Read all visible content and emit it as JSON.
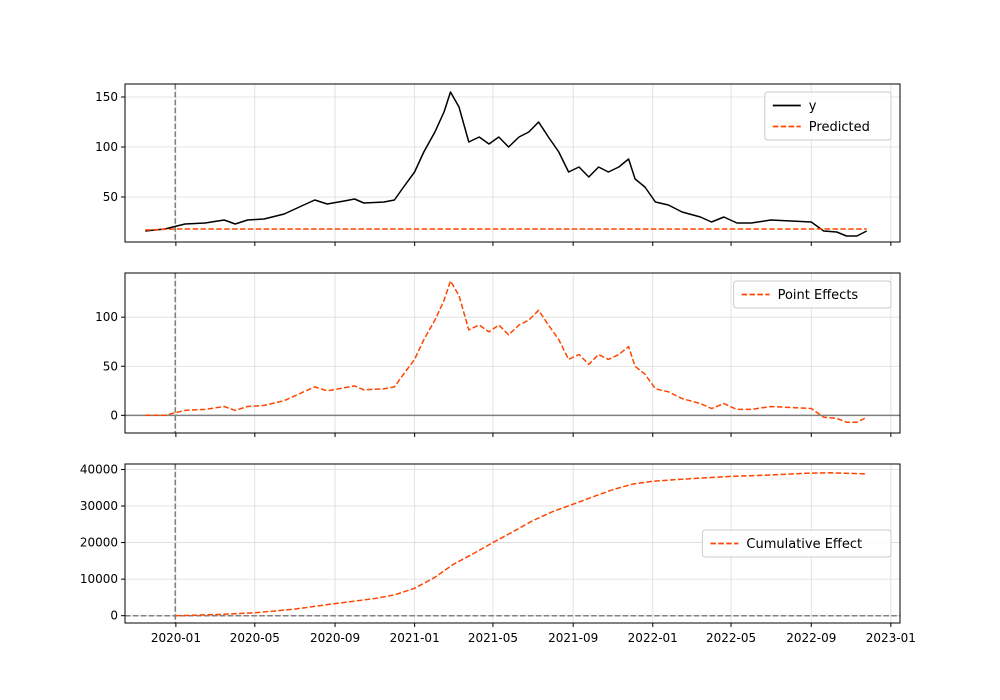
{
  "colors": {
    "observed": "#000000",
    "effect": "#ff4500",
    "reference": "#808080",
    "grid": "#dcdcdc"
  },
  "chart_data": [
    {
      "type": "line",
      "panel": "top",
      "x_axis": "date",
      "xlim": [
        "2019-10-15",
        "2023-01-15"
      ],
      "ylim": [
        5,
        163
      ],
      "yticks": [
        50,
        100,
        150
      ],
      "xticks": [
        "2020-01",
        "2020-05",
        "2020-09",
        "2021-01",
        "2021-05",
        "2021-09",
        "2022-01",
        "2022-05",
        "2022-09",
        "2023-01"
      ],
      "show_xtick_labels": false,
      "grid": true,
      "legend_position": "top-right",
      "intervention_date": "2019-12-31",
      "series": [
        {
          "name": "y",
          "style": "solid",
          "color": "#000000",
          "points": [
            [
              "2019-11-15",
              16
            ],
            [
              "2019-12-15",
              18
            ],
            [
              "2020-01-15",
              23
            ],
            [
              "2020-02-15",
              24
            ],
            [
              "2020-03-15",
              27
            ],
            [
              "2020-04-01",
              23
            ],
            [
              "2020-04-20",
              27
            ],
            [
              "2020-05-15",
              28
            ],
            [
              "2020-06-15",
              33
            ],
            [
              "2020-07-15",
              42
            ],
            [
              "2020-08-01",
              47
            ],
            [
              "2020-08-20",
              43
            ],
            [
              "2020-09-15",
              46
            ],
            [
              "2020-10-01",
              48
            ],
            [
              "2020-10-15",
              44
            ],
            [
              "2020-11-15",
              45
            ],
            [
              "2020-12-01",
              47
            ],
            [
              "2020-12-15",
              60
            ],
            [
              "2021-01-01",
              75
            ],
            [
              "2021-01-15",
              95
            ],
            [
              "2021-02-01",
              115
            ],
            [
              "2021-02-15",
              135
            ],
            [
              "2021-02-25",
              155
            ],
            [
              "2021-03-10",
              140
            ],
            [
              "2021-03-25",
              105
            ],
            [
              "2021-04-10",
              110
            ],
            [
              "2021-04-25",
              103
            ],
            [
              "2021-05-10",
              110
            ],
            [
              "2021-05-25",
              100
            ],
            [
              "2021-06-10",
              110
            ],
            [
              "2021-06-25",
              115
            ],
            [
              "2021-07-10",
              125
            ],
            [
              "2021-07-25",
              110
            ],
            [
              "2021-08-10",
              95
            ],
            [
              "2021-08-25",
              75
            ],
            [
              "2021-09-10",
              80
            ],
            [
              "2021-09-25",
              70
            ],
            [
              "2021-10-10",
              80
            ],
            [
              "2021-10-25",
              75
            ],
            [
              "2021-11-10",
              80
            ],
            [
              "2021-11-25",
              88
            ],
            [
              "2021-12-05",
              68
            ],
            [
              "2021-12-20",
              60
            ],
            [
              "2022-01-05",
              45
            ],
            [
              "2022-01-25",
              42
            ],
            [
              "2022-02-15",
              35
            ],
            [
              "2022-03-15",
              30
            ],
            [
              "2022-04-01",
              25
            ],
            [
              "2022-04-20",
              30
            ],
            [
              "2022-05-10",
              24
            ],
            [
              "2022-06-01",
              24
            ],
            [
              "2022-07-01",
              27
            ],
            [
              "2022-08-01",
              26
            ],
            [
              "2022-09-01",
              25
            ],
            [
              "2022-09-20",
              16
            ],
            [
              "2022-10-10",
              15
            ],
            [
              "2022-10-25",
              11
            ],
            [
              "2022-11-10",
              11
            ],
            [
              "2022-11-25",
              16
            ]
          ]
        },
        {
          "name": "Predicted",
          "style": "dashed",
          "color": "#ff4500",
          "points": [
            [
              "2019-11-15",
              17
            ],
            [
              "2019-12-31",
              18
            ],
            [
              "2022-11-25",
              18
            ]
          ]
        }
      ]
    },
    {
      "type": "line",
      "panel": "middle",
      "x_axis": "date",
      "xlim": [
        "2019-10-15",
        "2023-01-15"
      ],
      "ylim": [
        -18,
        145
      ],
      "yticks": [
        0,
        50,
        100
      ],
      "xticks": [
        "2020-01",
        "2020-05",
        "2020-09",
        "2021-01",
        "2021-05",
        "2021-09",
        "2022-01",
        "2022-05",
        "2022-09",
        "2023-01"
      ],
      "show_xtick_labels": false,
      "grid": true,
      "legend_position": "top-right",
      "intervention_date": "2019-12-31",
      "baseline": 0,
      "series": [
        {
          "name": "Point Effects",
          "style": "dashed",
          "color": "#ff4500",
          "points": [
            [
              "2019-11-15",
              0
            ],
            [
              "2019-12-15",
              0
            ],
            [
              "2020-01-15",
              5
            ],
            [
              "2020-02-15",
              6
            ],
            [
              "2020-03-15",
              9
            ],
            [
              "2020-04-01",
              5
            ],
            [
              "2020-04-20",
              9
            ],
            [
              "2020-05-15",
              10
            ],
            [
              "2020-06-15",
              15
            ],
            [
              "2020-07-15",
              24
            ],
            [
              "2020-08-01",
              29
            ],
            [
              "2020-08-20",
              25
            ],
            [
              "2020-09-15",
              28
            ],
            [
              "2020-10-01",
              30
            ],
            [
              "2020-10-15",
              26
            ],
            [
              "2020-11-15",
              27
            ],
            [
              "2020-12-01",
              29
            ],
            [
              "2020-12-15",
              42
            ],
            [
              "2021-01-01",
              57
            ],
            [
              "2021-01-15",
              77
            ],
            [
              "2021-02-01",
              97
            ],
            [
              "2021-02-15",
              117
            ],
            [
              "2021-02-25",
              137
            ],
            [
              "2021-03-10",
              122
            ],
            [
              "2021-03-25",
              87
            ],
            [
              "2021-04-10",
              92
            ],
            [
              "2021-04-25",
              85
            ],
            [
              "2021-05-10",
              92
            ],
            [
              "2021-05-25",
              82
            ],
            [
              "2021-06-10",
              92
            ],
            [
              "2021-06-25",
              97
            ],
            [
              "2021-07-10",
              107
            ],
            [
              "2021-07-25",
              92
            ],
            [
              "2021-08-10",
              77
            ],
            [
              "2021-08-25",
              57
            ],
            [
              "2021-09-10",
              62
            ],
            [
              "2021-09-25",
              52
            ],
            [
              "2021-10-10",
              62
            ],
            [
              "2021-10-25",
              57
            ],
            [
              "2021-11-10",
              62
            ],
            [
              "2021-11-25",
              70
            ],
            [
              "2021-12-05",
              50
            ],
            [
              "2021-12-20",
              42
            ],
            [
              "2022-01-05",
              27
            ],
            [
              "2022-01-25",
              24
            ],
            [
              "2022-02-15",
              17
            ],
            [
              "2022-03-15",
              12
            ],
            [
              "2022-04-01",
              7
            ],
            [
              "2022-04-20",
              12
            ],
            [
              "2022-05-10",
              6
            ],
            [
              "2022-06-01",
              6
            ],
            [
              "2022-07-01",
              9
            ],
            [
              "2022-08-01",
              8
            ],
            [
              "2022-09-01",
              7
            ],
            [
              "2022-09-20",
              -2
            ],
            [
              "2022-10-10",
              -3
            ],
            [
              "2022-10-25",
              -7
            ],
            [
              "2022-11-10",
              -7
            ],
            [
              "2022-11-25",
              -2
            ]
          ]
        }
      ]
    },
    {
      "type": "line",
      "panel": "bottom",
      "x_axis": "date",
      "xlim": [
        "2019-10-15",
        "2023-01-15"
      ],
      "ylim": [
        -2000,
        41500
      ],
      "yticks": [
        0,
        10000,
        20000,
        30000,
        40000
      ],
      "xticks": [
        "2020-01",
        "2020-05",
        "2020-09",
        "2021-01",
        "2021-05",
        "2021-09",
        "2022-01",
        "2022-05",
        "2022-09",
        "2023-01"
      ],
      "show_xtick_labels": true,
      "grid": true,
      "legend_position": "center-right",
      "intervention_date": "2019-12-31",
      "baseline": 0,
      "series": [
        {
          "name": "Cumulative Effect",
          "style": "dashed",
          "color": "#ff4500",
          "points": [
            [
              "2020-01-01",
              0
            ],
            [
              "2020-03-01",
              300
            ],
            [
              "2020-05-01",
              800
            ],
            [
              "2020-07-01",
              1800
            ],
            [
              "2020-09-01",
              3300
            ],
            [
              "2020-11-01",
              4700
            ],
            [
              "2020-12-01",
              5700
            ],
            [
              "2021-01-01",
              7500
            ],
            [
              "2021-02-01",
              10500
            ],
            [
              "2021-03-01",
              14000
            ],
            [
              "2021-04-01",
              17000
            ],
            [
              "2021-05-01",
              20000
            ],
            [
              "2021-06-01",
              23000
            ],
            [
              "2021-07-01",
              26000
            ],
            [
              "2021-08-01",
              28500
            ],
            [
              "2021-09-01",
              30500
            ],
            [
              "2021-10-01",
              32500
            ],
            [
              "2021-11-01",
              34500
            ],
            [
              "2021-12-01",
              36000
            ],
            [
              "2022-01-01",
              36800
            ],
            [
              "2022-03-01",
              37500
            ],
            [
              "2022-05-01",
              38100
            ],
            [
              "2022-07-01",
              38500
            ],
            [
              "2022-09-01",
              39000
            ],
            [
              "2022-10-01",
              39100
            ],
            [
              "2022-11-25",
              38800
            ]
          ]
        }
      ]
    }
  ]
}
